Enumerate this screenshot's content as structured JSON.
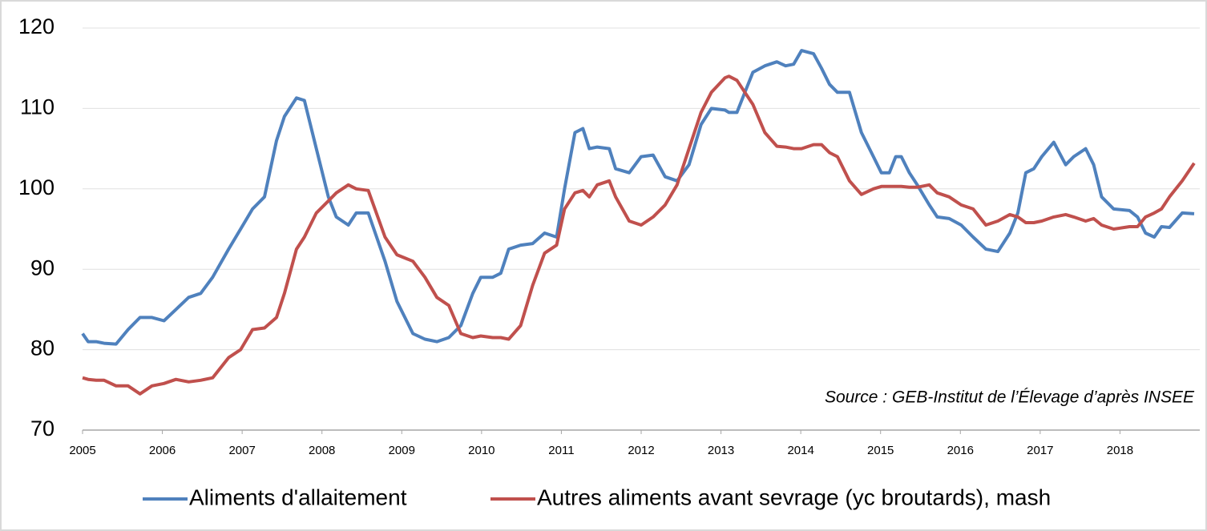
{
  "chart_data": {
    "type": "line",
    "annotation": "Source : GEB-Institut de l’Élevage d’après INSEE",
    "x": [
      2005.0,
      2005.07,
      2005.17,
      2005.27,
      2005.42,
      2005.57,
      2005.72,
      2005.87,
      2006.02,
      2006.17,
      2006.33,
      2006.48,
      2006.63,
      2006.83,
      2006.98,
      2007.13,
      2007.28,
      2007.43,
      2007.53,
      2007.68,
      2007.78,
      2007.93,
      2008.08,
      2008.18,
      2008.33,
      2008.43,
      2008.58,
      2008.79,
      2008.94,
      2009.14,
      2009.29,
      2009.44,
      2009.59,
      2009.74,
      2009.89,
      2009.99,
      2010.14,
      2010.24,
      2010.34,
      2010.49,
      2010.64,
      2010.79,
      2010.94,
      2011.04,
      2011.17,
      2011.27,
      2011.35,
      2011.45,
      2011.6,
      2011.68,
      2011.85,
      2012.0,
      2012.15,
      2012.3,
      2012.45,
      2012.6,
      2012.75,
      2012.88,
      2013.05,
      2013.1,
      2013.2,
      2013.3,
      2013.4,
      2013.55,
      2013.7,
      2013.81,
      2013.91,
      2014.01,
      2014.16,
      2014.26,
      2014.36,
      2014.46,
      2014.61,
      2014.76,
      2014.91,
      2015.01,
      2015.11,
      2015.19,
      2015.26,
      2015.36,
      2015.46,
      2015.61,
      2015.71,
      2015.86,
      2016.01,
      2016.16,
      2016.32,
      2016.47,
      2016.62,
      2016.72,
      2016.82,
      2016.92,
      2017.02,
      2017.17,
      2017.32,
      2017.42,
      2017.57,
      2017.67,
      2017.77,
      2017.92,
      2018.12,
      2018.22,
      2018.32,
      2018.43,
      2018.52,
      2018.62,
      2018.78,
      2018.93
    ],
    "series": [
      {
        "name": "Aliments d'allaitement",
        "color": "#4f81bd",
        "values": [
          82,
          81,
          81,
          80.8,
          80.7,
          82.5,
          84,
          84,
          83.6,
          85,
          86.5,
          87,
          89,
          92.5,
          95,
          97.5,
          99,
          106,
          109,
          111.3,
          111,
          105,
          99,
          96.5,
          95.5,
          97,
          97,
          91,
          86,
          82,
          81.3,
          81,
          81.5,
          83,
          87,
          89,
          89,
          89.5,
          92.5,
          93,
          93.2,
          94.5,
          94,
          100,
          107,
          107.5,
          105,
          105.2,
          105,
          102.5,
          102,
          104,
          104.2,
          101.5,
          101,
          103,
          108,
          110,
          109.8,
          109.5,
          109.5,
          112,
          114.5,
          115.3,
          115.8,
          115.3,
          115.5,
          117.2,
          116.8,
          115,
          113,
          112,
          112,
          107,
          104,
          102,
          102,
          104,
          104,
          102,
          100.5,
          98,
          96.5,
          96.3,
          95.5,
          94,
          92.5,
          92.2,
          94.5,
          97,
          102,
          102.5,
          104,
          105.8,
          103,
          104,
          105,
          103,
          99,
          97.5,
          97.3,
          96.5,
          94.5,
          94,
          95.3,
          95.2,
          97,
          96.9
        ]
      },
      {
        "name": "Autres aliments avant sevrage (yc broutards), mash",
        "color": "#c0504d",
        "values": [
          76.5,
          76.3,
          76.2,
          76.2,
          75.5,
          75.5,
          74.5,
          75.5,
          75.8,
          76.3,
          76,
          76.2,
          76.5,
          79,
          80,
          82.5,
          82.7,
          84,
          87,
          92.5,
          94,
          97,
          98.5,
          99.5,
          100.5,
          100,
          99.8,
          94,
          91.8,
          91,
          89,
          86.5,
          85.5,
          82,
          81.5,
          81.7,
          81.5,
          81.5,
          81.3,
          83,
          88,
          92,
          93,
          97.5,
          99.5,
          99.8,
          99,
          100.5,
          101,
          99,
          96,
          95.5,
          96.5,
          98,
          100.5,
          105,
          109.5,
          112,
          113.8,
          114,
          113.5,
          112,
          110.5,
          107,
          105.3,
          105.2,
          105,
          105,
          105.5,
          105.5,
          104.5,
          104,
          101,
          99.3,
          100,
          100.3,
          100.3,
          100.3,
          100.3,
          100.2,
          100.2,
          100.5,
          99.5,
          99,
          98,
          97.5,
          95.5,
          96,
          96.8,
          96.5,
          95.8,
          95.8,
          96,
          96.5,
          96.8,
          96.5,
          96,
          96.3,
          95.5,
          95,
          95.3,
          95.3,
          96.5,
          97,
          97.5,
          99,
          101,
          103.2
        ]
      }
    ],
    "xlim": [
      2005,
      2019
    ],
    "xticks": [
      2005,
      2006,
      2007,
      2008,
      2009,
      2010,
      2011,
      2012,
      2013,
      2014,
      2015,
      2016,
      2017,
      2018
    ],
    "ylim": [
      70,
      120
    ],
    "yticks": [
      70,
      80,
      90,
      100,
      110,
      120
    ],
    "grid": true,
    "legend": "bottom"
  }
}
